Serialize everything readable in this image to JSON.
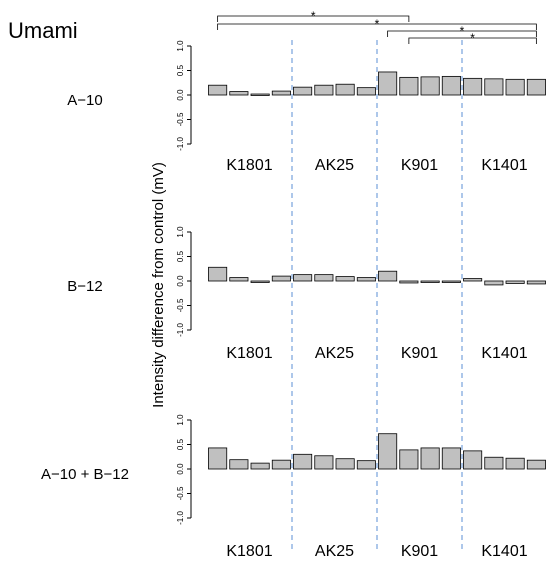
{
  "figure": {
    "title": "Umami",
    "ylabel": "Intensity difference from control (mV)"
  },
  "chart_data": [
    {
      "type": "bar",
      "panel_label": "A−10",
      "groups": [
        "K1801",
        "AK25",
        "K901",
        "K1401"
      ],
      "bars_per_group": 4,
      "values": [
        0.2,
        0.07,
        0.02,
        0.08,
        0.16,
        0.2,
        0.22,
        0.15,
        0.47,
        0.36,
        0.37,
        0.38,
        0.34,
        0.33,
        0.32,
        0.32
      ],
      "ylim": [
        -1.0,
        1.0
      ],
      "yticks": [
        "-1.0",
        "-0.5",
        "0.0",
        "0.5",
        "1.0"
      ],
      "bar_color": "#c0c0c0",
      "separator_color": "#5b8fd6",
      "significance": [
        {
          "from_bar": 0,
          "to_bar": 9,
          "label": "*"
        },
        {
          "from_bar": 0,
          "to_bar": 15,
          "label": "*"
        },
        {
          "from_bar": 8,
          "to_bar": 15,
          "label": "*"
        },
        {
          "from_bar": 9,
          "to_bar": 15,
          "label": "*"
        }
      ]
    },
    {
      "type": "bar",
      "panel_label": "B−12",
      "groups": [
        "K1801",
        "AK25",
        "K901",
        "K1401"
      ],
      "bars_per_group": 4,
      "values": [
        0.28,
        0.07,
        -0.01,
        0.1,
        0.13,
        0.13,
        0.09,
        0.07,
        0.2,
        -0.04,
        -0.02,
        -0.02,
        0.05,
        -0.08,
        -0.05,
        -0.06
      ],
      "ylim": [
        -1.0,
        1.0
      ],
      "yticks": [
        "-1.0",
        "-0.5",
        "0.0",
        "0.5",
        "1.0"
      ],
      "bar_color": "#c0c0c0",
      "separator_color": "#5b8fd6",
      "significance": []
    },
    {
      "type": "bar",
      "panel_label": "A−10 + B−12",
      "groups": [
        "K1801",
        "AK25",
        "K901",
        "K1401"
      ],
      "bars_per_group": 4,
      "values": [
        0.43,
        0.19,
        0.12,
        0.18,
        0.3,
        0.27,
        0.21,
        0.17,
        0.72,
        0.39,
        0.43,
        0.43,
        0.37,
        0.24,
        0.22,
        0.18
      ],
      "ylim": [
        -1.0,
        1.0
      ],
      "yticks": [
        "-1.0",
        "-0.5",
        "0.0",
        "0.5",
        "1.0"
      ],
      "bar_color": "#c0c0c0",
      "separator_color": "#5b8fd6",
      "significance": []
    }
  ]
}
